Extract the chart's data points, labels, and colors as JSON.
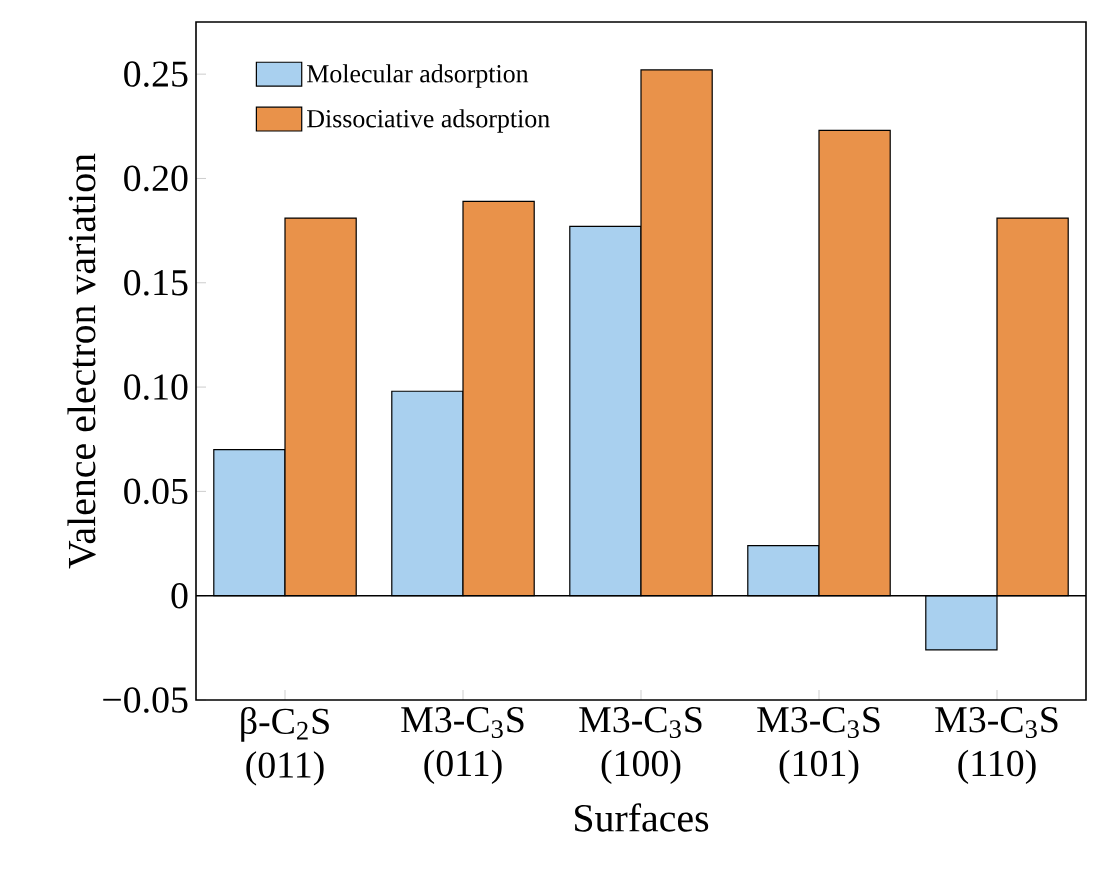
{
  "chart_data": {
    "type": "bar",
    "xlabel": "Surfaces",
    "ylabel": "Valence electron variation",
    "categories": [
      "β-C$_{2}$S (011)",
      "M3-C$_{3}$S (011)",
      "M3-C$_{3}$S (100)",
      "M3-C$_{3}$S (101)",
      "M3-C$_{3}$S (110)"
    ],
    "series": [
      {
        "name": "Molecular adsorption",
        "color": "#a9d0ef",
        "values": [
          0.07,
          0.098,
          0.177,
          0.024,
          -0.026
        ]
      },
      {
        "name": "Dissociative adsorption",
        "color": "#e9924a",
        "values": [
          0.181,
          0.189,
          0.252,
          0.223,
          0.181
        ]
      }
    ],
    "ylim": [
      -0.05,
      0.275
    ],
    "yticks": [
      {
        "value": -0.05,
        "label": "−0.05"
      },
      0,
      0.05,
      {
        "value": 0.1,
        "label": "0.10"
      },
      0.15,
      {
        "value": 0.2,
        "label": "0.20"
      },
      0.25
    ],
    "legend": "top left"
  }
}
